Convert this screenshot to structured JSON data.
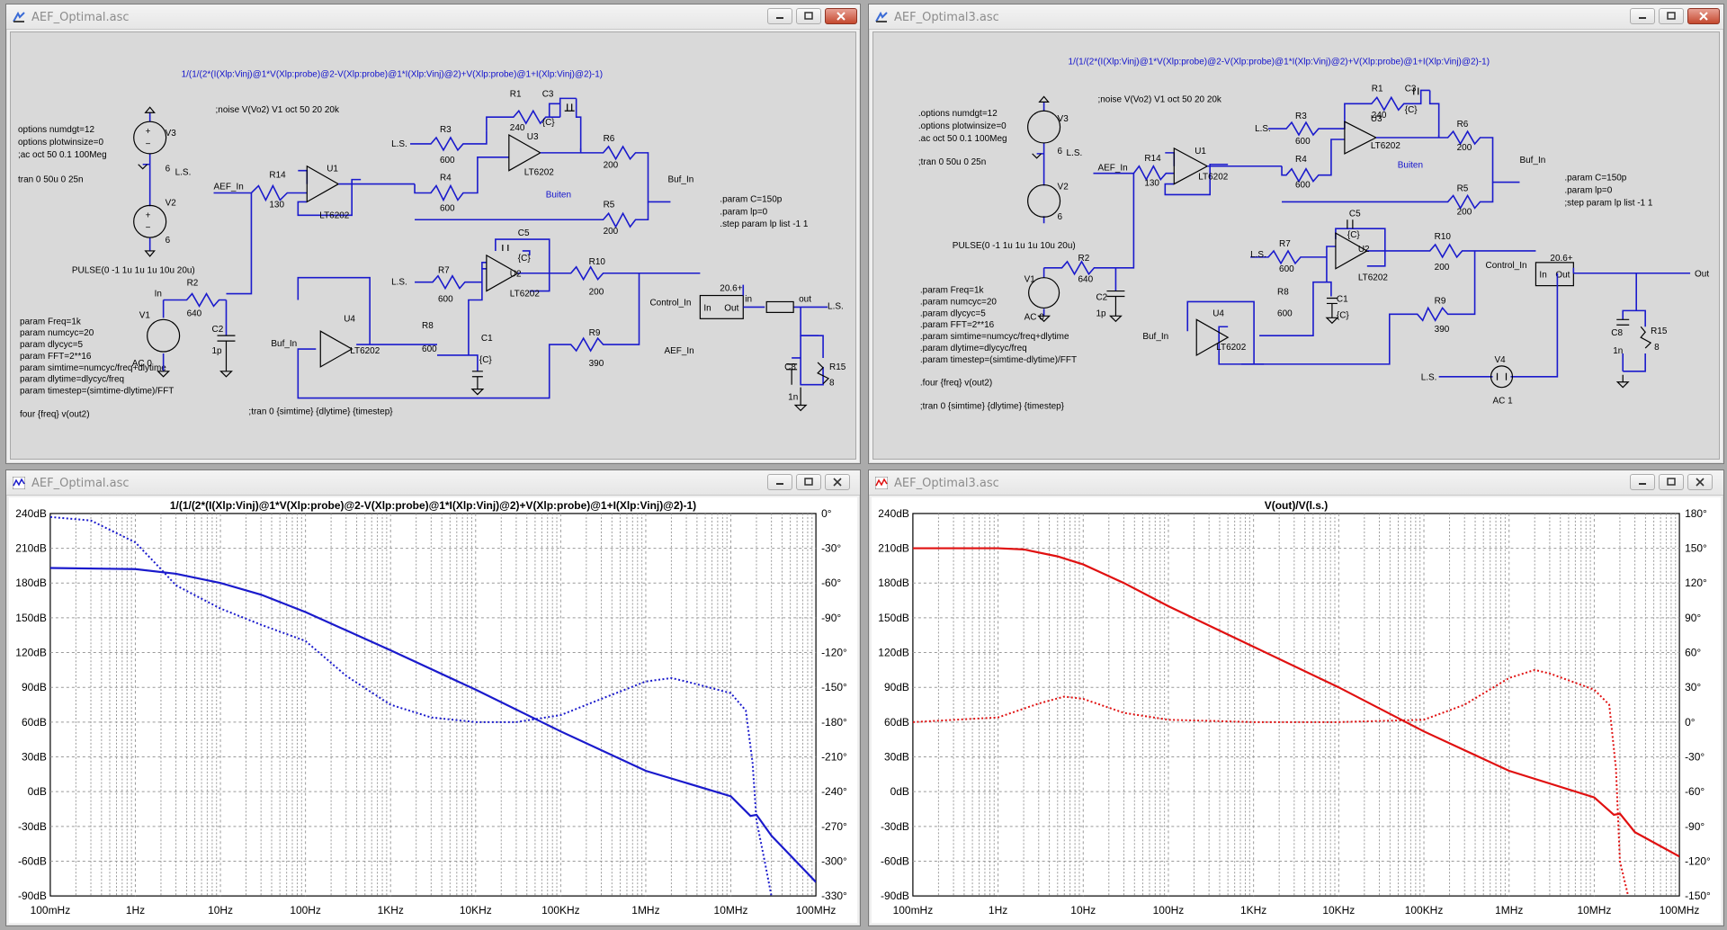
{
  "windows": {
    "top_left": {
      "title": "AEF_Optimal.asc"
    },
    "top_right": {
      "title": "AEF_Optimal3.asc"
    },
    "bottom_left": {
      "title": "AEF_Optimal.asc"
    },
    "bottom_right": {
      "title": "AEF_Optimal3.asc"
    }
  },
  "schematic1": {
    "expr": "1/(1/(2*(I(Xlp:Vinj)@1*V(Xlp:probe)@2-V(Xlp:probe)@1*I(Xlp:Vinj)@2)+V(Xlp:probe)@1+I(Xlp:Vinj)@2)-1)",
    "noise": ";noise V(Vo2) V1 oct 50 20 20k",
    "options": [
      "options numdgt=12",
      "options plotwinsize=0",
      ";ac oct 50 0.1 100Meg",
      "",
      "tran 0 50u 0 25n"
    ],
    "params": [
      "param Freq=1k",
      "param numcyc=20",
      "param dlycyc=5",
      "param FFT=2**16",
      "param simtime=numcyc/freq+dlytime",
      "param dlytime=dlycyc/freq",
      "param timestep=(simtime-dlytime)/FFT",
      "",
      "four {freq} v(out2)"
    ],
    "tran": ";tran 0 {simtime} {dlytime} {timestep}",
    "param_c": [
      ".param C=150p",
      ".param lp=0",
      ".step param lp list -1 1"
    ],
    "pulse": "PULSE(0 -1 1u 1u 1u 10u 20u)",
    "labels": {
      "V3": "V3",
      "V3v": "6",
      "V2": "V2",
      "V2v": "6",
      "LS": "L.S.",
      "LS2": "L.S.",
      "LS3": "L.S.",
      "LS4": "L.S.",
      "R14": "R14",
      "R14v": "130",
      "AEF_In": "AEF_In",
      "U1": "U1",
      "U1m": "LT6202",
      "R3": "R3",
      "R3v": "600",
      "R4": "R4",
      "R4v": "600",
      "R1": "R1",
      "R1v": "240",
      "C3": "C3",
      "C3v": "{C}",
      "U3": "U3",
      "U3m": "LT6202",
      "R6": "R6",
      "R6v": "200",
      "R5": "R5",
      "R5v": "200",
      "Buiten": "Buiten",
      "Buf_In": "Buf_In",
      "In": "In",
      "R2": "R2",
      "R2v": "640",
      "V1": "V1",
      "AC0": "AC 0",
      "C2": "C2",
      "C2v": "1p",
      "R7": "R7",
      "R7v": "600",
      "C5": "C5",
      "C5v": "{C}",
      "U2": "U2",
      "U2m": "LT6202",
      "R10": "R10",
      "R10v": "200",
      "Control_In": "Control_In",
      "amp": "20.6+",
      "ampIn": "In",
      "ampOut": "Out",
      "inl": "in",
      "out": "out",
      "Buf_In2": "Buf_In",
      "U4": "U4",
      "U4m": "LT6202",
      "R8": "R8",
      "R8v": "600",
      "C1": "C1",
      "C1v": "{C}",
      "R9": "R9",
      "R9v": "390",
      "AEF_In2": "AEF_In",
      "C8": "C8",
      "C8v": "1n",
      "R15": "R15",
      "R15v": "8"
    }
  },
  "schematic2": {
    "expr": "1/(1/(2*(I(Xlp:Vinj)@1*V(Xlp:probe)@2-V(Xlp:probe)@1*I(Xlp:Vinj)@2)+V(Xlp:probe)@1+I(Xlp:Vinj)@2)-1)",
    "noise": ";noise V(Vo2) V1 oct 50 20 20k",
    "options": [
      ".options numdgt=12",
      ".options plotwinsize=0",
      ".ac oct 50 0.1 100Meg",
      "",
      ";tran 0 50u 0 25n"
    ],
    "params": [
      ".param Freq=1k",
      ".param numcyc=20",
      ".param dlycyc=5",
      ".param FFT=2**16",
      ".param simtime=numcyc/freq+dlytime",
      ".param dlytime=dlycyc/freq",
      ".param timestep=(simtime-dlytime)/FFT",
      "",
      ".four {freq} v(out2)",
      "",
      ";tran 0 {simtime} {dlytime} {timestep}"
    ],
    "param_c": [
      ".param C=150p",
      ".param lp=0",
      ";step param lp list -1 1"
    ],
    "pulse": "PULSE(0 -1 1u 1u 1u 10u 20u)",
    "labels": {
      "V3": "V3",
      "V3v": "6",
      "V2": "V2",
      "V2v": "6",
      "LS": "L.S.",
      "LS2": "L.S.",
      "LS3": "L.S.",
      "LS4": "L.S.",
      "R14": "R14",
      "R14v": "130",
      "AEF_In": "AEF_In",
      "U1": "U1",
      "U1m": "LT6202",
      "R3": "R3",
      "R3v": "600",
      "R4": "R4",
      "R4v": "600",
      "R1": "R1",
      "R1v": "240",
      "C3": "C3",
      "C3v": "{C}",
      "U3": "U3",
      "U3m": "LT6202",
      "R6": "R6",
      "R6v": "200",
      "R5": "R5",
      "R5v": "200",
      "Buiten": "Buiten",
      "Buf_In": "Buf_In",
      "V1": "V1",
      "AC0": "AC 0",
      "R2": "R2",
      "R2v": "640",
      "C2": "C2",
      "C2v": "1p",
      "R7": "R7",
      "R7v": "600",
      "C5": "C5",
      "C5v": "{C}",
      "U2": "U2",
      "U2m": "LT6202",
      "R10": "R10",
      "R10v": "200",
      "Control_In": "Control_In",
      "amp": "20.6+",
      "ampIn": "In",
      "ampOut": "Out",
      "out": "Out",
      "Buf_In2": "Buf_In",
      "U4": "U4",
      "U4m": "LT6202",
      "R8": "R8",
      "R8v": "600",
      "C1": "C1",
      "C1v": "{C}",
      "R9": "R9",
      "R9v": "390",
      "C8": "C8",
      "C8v": "1n",
      "R15": "R15",
      "R15v": "8",
      "V4": "V4",
      "AC1": "AC 1"
    }
  },
  "plot1": {
    "title": "1/(1/(2*(I(Xlp:Vinj)@1*V(Xlp:probe)@2-V(Xlp:probe)@1*I(Xlp:Vinj)@2)+V(Xlp:probe)@1+I(Xlp:Vinj)@2)-1)",
    "color": "#1a1acc"
  },
  "plot2": {
    "title": "V(out)/V(l.s.)",
    "color": "#e01010"
  },
  "chart_data": [
    {
      "type": "line",
      "title": "1/(1/(2*(I(Xlp:Vinj)@1*V(Xlp:probe)@2-V(Xlp:probe)@1*I(Xlp:Vinj)@2)+V(Xlp:probe)@1+I(Xlp:Vinj)@2)-1)",
      "x_scale": "log",
      "x_ticks": [
        "100mHz",
        "1Hz",
        "10Hz",
        "100Hz",
        "1KHz",
        "10KHz",
        "100KHz",
        "1MHz",
        "10MHz",
        "100MHz"
      ],
      "x_decades": [
        0.1,
        1,
        10,
        100,
        1000,
        10000,
        100000,
        1000000,
        10000000,
        100000000
      ],
      "y_left_ticks": [
        "240dB",
        "210dB",
        "180dB",
        "150dB",
        "120dB",
        "90dB",
        "60dB",
        "30dB",
        "0dB",
        "-30dB",
        "-60dB",
        "-90dB"
      ],
      "y_left_range": [
        -90,
        240
      ],
      "y_right_ticks": [
        "0°",
        "-30°",
        "-60°",
        "-90°",
        "-120°",
        "-150°",
        "-180°",
        "-210°",
        "-240°",
        "-270°",
        "-300°",
        "-330°"
      ],
      "y_right_range": [
        -330,
        0
      ],
      "series": [
        {
          "style": "solid",
          "axis": "left",
          "x": [
            0.1,
            1,
            3,
            10,
            30,
            100,
            1000,
            10000,
            100000,
            1000000,
            10000000,
            17000000,
            20000000,
            30000000,
            100000000
          ],
          "values": [
            193,
            192,
            188,
            180,
            170,
            155,
            122,
            88,
            52,
            18,
            -4,
            -21,
            -20,
            -38,
            -78
          ]
        },
        {
          "style": "dotted",
          "axis": "right",
          "x": [
            0.1,
            0.3,
            1,
            2,
            3,
            10,
            30,
            100,
            300,
            1000,
            3000,
            10000,
            30000,
            100000,
            300000,
            1000000,
            2000000,
            3000000,
            10000000,
            15000000,
            18000000,
            20000000,
            25000000,
            30000000
          ],
          "values": [
            -3,
            -6,
            -25,
            -48,
            -62,
            -82,
            -96,
            -110,
            -140,
            -165,
            -176,
            -180,
            -180,
            -174,
            -160,
            -145,
            -142,
            -145,
            -155,
            -170,
            -215,
            -265,
            -300,
            -330
          ]
        }
      ]
    },
    {
      "type": "line",
      "title": "V(out)/V(l.s.)",
      "x_scale": "log",
      "x_ticks": [
        "100mHz",
        "1Hz",
        "10Hz",
        "100Hz",
        "1KHz",
        "10KHz",
        "100KHz",
        "1MHz",
        "10MHz",
        "100MHz"
      ],
      "x_decades": [
        0.1,
        1,
        10,
        100,
        1000,
        10000,
        100000,
        1000000,
        10000000,
        100000000
      ],
      "y_left_ticks": [
        "240dB",
        "210dB",
        "180dB",
        "150dB",
        "120dB",
        "90dB",
        "60dB",
        "30dB",
        "0dB",
        "-30dB",
        "-60dB",
        "-90dB"
      ],
      "y_left_range": [
        -90,
        240
      ],
      "y_right_ticks": [
        "180°",
        "150°",
        "120°",
        "90°",
        "60°",
        "30°",
        "0°",
        "-30°",
        "-60°",
        "-90°",
        "-120°",
        "-150°"
      ],
      "y_right_range": [
        -150,
        180
      ],
      "series": [
        {
          "style": "solid",
          "axis": "left",
          "x": [
            0.1,
            1,
            2,
            5,
            10,
            30,
            100,
            1000,
            10000,
            100000,
            1000000,
            10000000,
            17000000,
            20000000,
            30000000,
            100000000
          ],
          "values": [
            210,
            210,
            209,
            203,
            196,
            180,
            160,
            125,
            90,
            52,
            18,
            -5,
            -20,
            -19,
            -35,
            -56
          ]
        },
        {
          "style": "dotted",
          "axis": "right",
          "x": [
            0.1,
            1,
            3,
            6,
            10,
            30,
            100,
            1000,
            10000,
            100000,
            300000,
            1000000,
            2000000,
            3000000,
            10000000,
            15000000,
            18000000,
            20000000,
            25000000
          ],
          "values": [
            0,
            4,
            16,
            22,
            20,
            8,
            2,
            0,
            0,
            2,
            15,
            38,
            45,
            42,
            28,
            15,
            -40,
            -120,
            -150
          ]
        }
      ]
    }
  ]
}
